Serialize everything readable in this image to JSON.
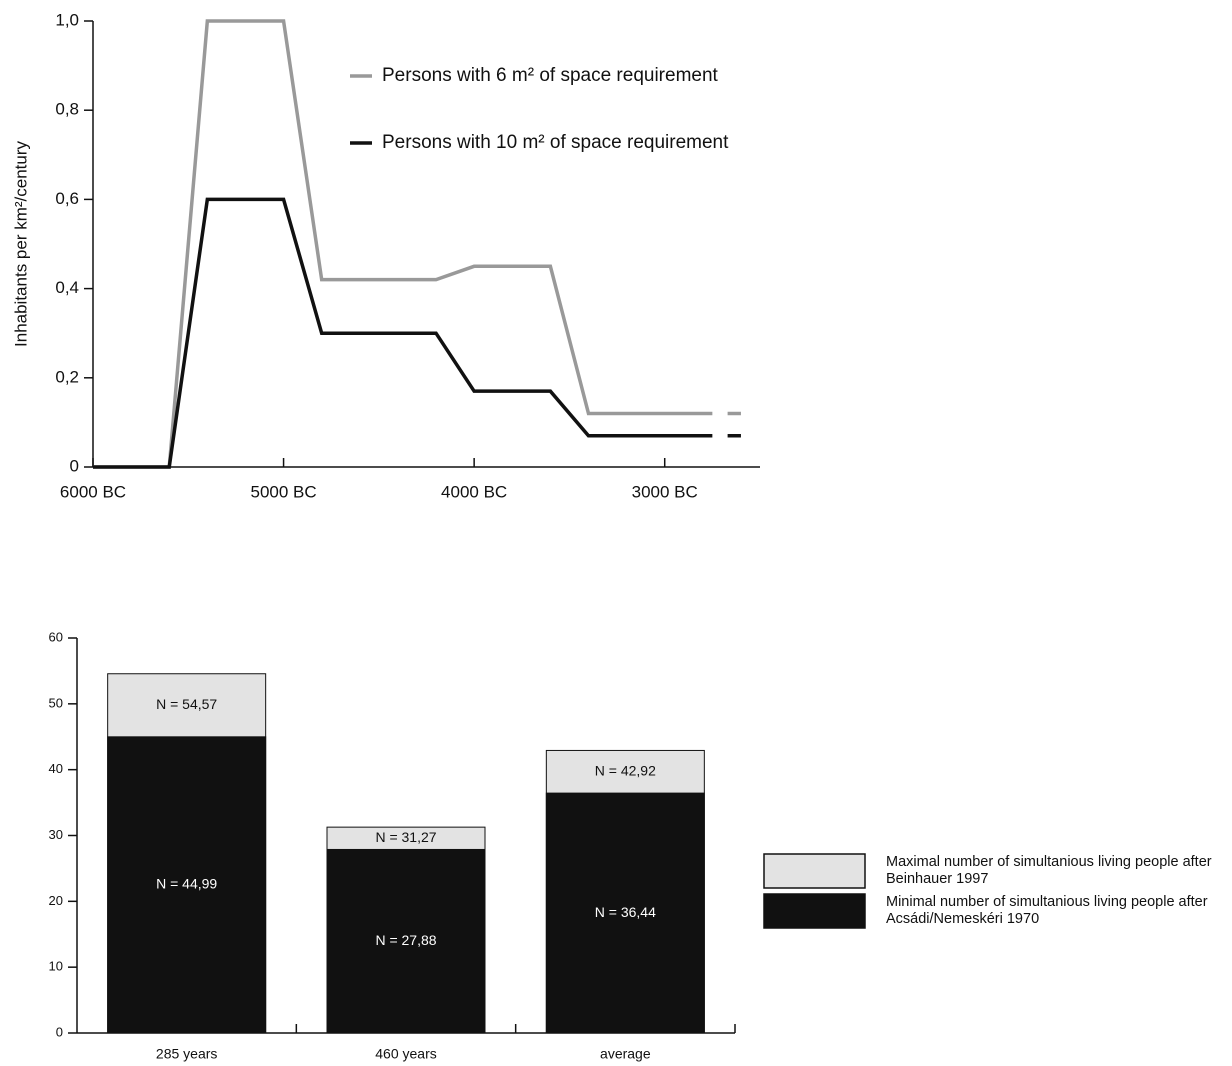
{
  "chart_data": [
    {
      "type": "line",
      "ylabel": "Inhabitants per km²/century",
      "x": [
        -6000,
        -5600,
        -5400,
        -5000,
        -4800,
        -4200,
        -4000,
        -3600,
        -3400,
        -2750,
        -2700,
        -2670,
        -2600
      ],
      "series": [
        {
          "name": "Persons with 6 m² of space requirement",
          "color": "#999999",
          "values": [
            0,
            0,
            1.0,
            1.0,
            0.42,
            0.42,
            0.45,
            0.45,
            0.12,
            0.12,
            null,
            0.12,
            0.12
          ]
        },
        {
          "name": "Persons with 10 m² of space requirement",
          "color": "#111111",
          "values": [
            0,
            0,
            0.6,
            0.6,
            0.3,
            0.3,
            0.17,
            0.17,
            0.07,
            0.07,
            null,
            0.07,
            0.07
          ]
        }
      ],
      "xlim": [
        -6000,
        -2500
      ],
      "xticks": [
        {
          "value": -6000,
          "label": "6000 BC"
        },
        {
          "value": -5000,
          "label": "5000 BC"
        },
        {
          "value": -4000,
          "label": "4000 BC"
        },
        {
          "value": -3000,
          "label": "3000 BC"
        }
      ],
      "ylim": [
        0,
        1.0
      ],
      "yticks": [
        0,
        {
          "value": 0.2,
          "label": "0,2"
        },
        {
          "value": 0.4,
          "label": "0,4"
        },
        {
          "value": 0.6,
          "label": "0,6"
        },
        {
          "value": 0.8,
          "label": "0,8"
        },
        {
          "value": 1.0,
          "label": "1,0"
        }
      ]
    },
    {
      "type": "bar",
      "categories": [
        "285 years",
        "460 years",
        "average"
      ],
      "series": [
        {
          "name": "Maximal number of simultanious living people after Beinhauer 1997",
          "color": "#e3e3e3",
          "values": [
            54.57,
            31.27,
            42.92
          ],
          "value_labels": [
            "N = 54,57",
            "N = 31,27",
            "N = 42,92"
          ]
        },
        {
          "name": "Minimal number of simultanious living people after Acsádi/Nemeskéri 1970",
          "color": "#111111",
          "values": [
            44.99,
            27.88,
            36.44
          ],
          "value_labels": [
            "N = 44,99",
            "N = 27,88",
            "N = 36,44"
          ]
        }
      ],
      "ylim": [
        0,
        60
      ],
      "yticks": [
        0,
        10,
        20,
        30,
        40,
        50,
        60
      ]
    }
  ]
}
